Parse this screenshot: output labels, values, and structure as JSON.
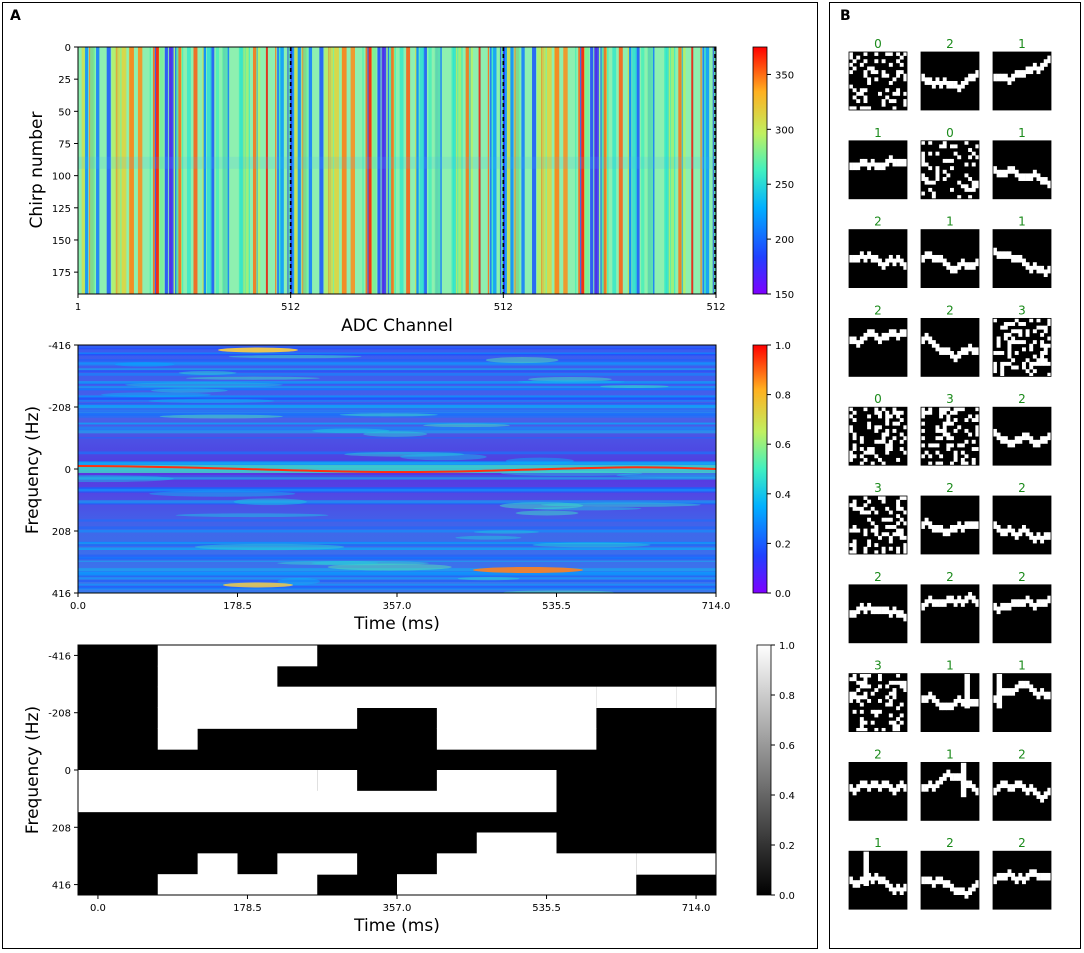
{
  "panel_a": {
    "label": "A",
    "chart_data": [
      {
        "type": "heatmap",
        "name": "ADC heatmap",
        "ylabel": "Chirp number",
        "xlabel": "ADC Channel",
        "y_ticks": [
          0,
          25,
          50,
          75,
          100,
          125,
          150,
          175
        ],
        "y_range": [
          0,
          192
        ],
        "x_ticks": [
          "1",
          "512",
          "512",
          "512"
        ],
        "colormap": "jet",
        "colorbar": {
          "min": 150,
          "max": 375,
          "ticks": [
            150,
            200,
            250,
            300,
            350
          ]
        },
        "segment_dividers": 3
      },
      {
        "type": "heatmap",
        "name": "Spectrogram",
        "ylabel": "Frequency (Hz)",
        "xlabel": "Time (ms)",
        "y_ticks": [
          "-416",
          "-208",
          "0",
          "208",
          "416"
        ],
        "x_ticks": [
          "0.0",
          "178.5",
          "357.0",
          "535.5",
          "714.0"
        ],
        "x_range": [
          0,
          714
        ],
        "colormap": "jet",
        "colorbar": {
          "min": 0.0,
          "max": 1.0,
          "ticks": [
            "0.0",
            "0.2",
            "0.4",
            "0.6",
            "0.8",
            "1.0"
          ]
        }
      },
      {
        "type": "heatmap",
        "name": "Binarized spectrogram",
        "ylabel": "Frequency (Hz)",
        "xlabel": "Time (ms)",
        "y_ticks": [
          "-416",
          "-208",
          "0",
          "208",
          "416"
        ],
        "x_ticks": [
          "0.0",
          "178.5",
          "357.0",
          "535.5",
          "714.0"
        ],
        "x_range": [
          0,
          714
        ],
        "colormap": "gray",
        "colorbar": {
          "min": 0.0,
          "max": 1.0,
          "ticks": [
            "0.0",
            "0.2",
            "0.4",
            "0.6",
            "0.8",
            "1.0"
          ]
        },
        "grid_cols": 16,
        "grid_rows": 12,
        "white_runs": [
          [
            [
              3,
              6
            ]
          ],
          [
            [
              3,
              5
            ]
          ],
          [
            [
              3,
              4
            ],
            [
              5,
              8
            ],
            [
              9,
              13
            ],
            [
              14,
              15
            ],
            [
              16,
              16
            ]
          ],
          [
            [
              3,
              7
            ],
            [
              10,
              13
            ]
          ],
          [
            [
              3,
              3
            ],
            [
              10,
              13
            ]
          ],
          [
            []
          ],
          [
            [
              1,
              6
            ],
            [
              7,
              7
            ],
            [
              9,
              8
            ],
            [
              10,
              12
            ]
          ],
          [
            [
              1,
              12
            ]
          ],
          [
            []
          ],
          [
            [
              11,
              12
            ]
          ],
          [
            [
              4,
              4
            ],
            [
              6,
              7
            ],
            [
              10,
              14
            ],
            [
              15,
              16
            ]
          ],
          [
            [
              3,
              4
            ],
            [
              5,
              6
            ],
            [
              9,
              14
            ]
          ]
        ]
      }
    ]
  },
  "panel_b": {
    "label": "B",
    "label_color": "#1a8a1a",
    "grid_labels": [
      [
        "0",
        "2",
        "1"
      ],
      [
        "1",
        "0",
        "1"
      ],
      [
        "2",
        "1",
        "1"
      ],
      [
        "2",
        "2",
        "3"
      ],
      [
        "0",
        "3",
        "2"
      ],
      [
        "3",
        "2",
        "2"
      ],
      [
        "2",
        "2",
        "2"
      ],
      [
        "3",
        "1",
        "1"
      ],
      [
        "2",
        "1",
        "2"
      ],
      [
        "1",
        "2",
        "2"
      ]
    ]
  }
}
